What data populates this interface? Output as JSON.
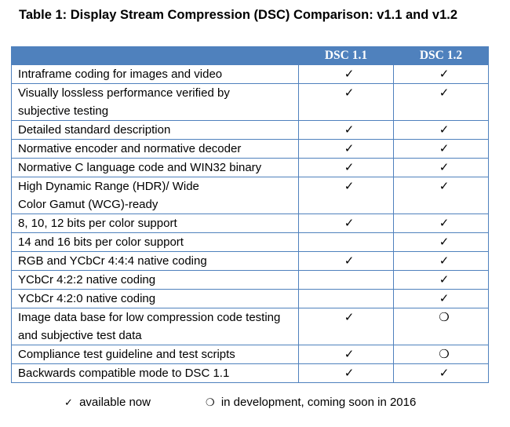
{
  "title": "Table 1: Display Stream Compression (DSC) Comparison: v1.1 and v1.2",
  "columns": [
    "",
    "DSC 1.1",
    "DSC 1.2"
  ],
  "rows": [
    {
      "feature": "Intraframe coding for images and video",
      "v11": "✓",
      "v12": "✓"
    },
    {
      "feature": "Visually lossless performance verified by subjective testing",
      "v11": "✓",
      "v12": "✓"
    },
    {
      "feature": "Detailed standard description",
      "v11": "✓",
      "v12": "✓"
    },
    {
      "feature": "Normative encoder and normative decoder",
      "v11": "✓",
      "v12": "✓"
    },
    {
      "feature": "Normative C language code and WIN32 binary",
      "v11": "✓",
      "v12": "✓"
    },
    {
      "feature": "High Dynamic Range (HDR)/ Wide Color Gamut (WCG)-ready",
      "v11": "✓",
      "v12": "✓"
    },
    {
      "feature": "8, 10, 12 bits per color support",
      "v11": "✓",
      "v12": "✓"
    },
    {
      "feature": "14 and 16 bits per color support",
      "v11": "",
      "v12": "✓"
    },
    {
      "feature": "RGB and YCbCr 4:4:4 native coding",
      "v11": "✓",
      "v12": "✓"
    },
    {
      "feature": "YCbCr 4:2:2 native coding",
      "v11": "",
      "v12": "✓"
    },
    {
      "feature": "YCbCr 4:2:0 native coding",
      "v11": "",
      "v12": "✓"
    },
    {
      "feature": "Image data base for low compression code testing and subjective test data",
      "v11": "✓",
      "v12": "❍"
    },
    {
      "feature": "Compliance test guideline and test scripts",
      "v11": "✓",
      "v12": "❍"
    },
    {
      "feature": "Backwards compatible mode to DSC 1.1",
      "v11": "✓",
      "v12": "✓"
    }
  ],
  "legend": {
    "available_symbol": "✓",
    "available_text": "available now",
    "development_symbol": "❍",
    "development_text": "in development, coming soon in 2016"
  },
  "colors": {
    "header_bg": "#4f81bd",
    "border": "#4f81bd"
  }
}
